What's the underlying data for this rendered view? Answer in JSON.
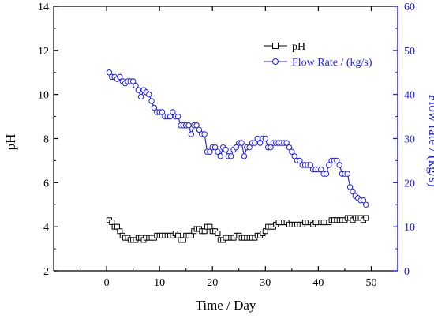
{
  "chart_data": {
    "type": "line",
    "title": "",
    "xlabel": "Time / Day",
    "ylabel_left": "pH",
    "ylabel_right": "Flow rate / (kg/s)",
    "xlim": [
      -10,
      55
    ],
    "ylim_left": [
      2,
      14
    ],
    "ylim_right": [
      0,
      60
    ],
    "x_ticks": [
      0,
      10,
      20,
      30,
      40,
      50
    ],
    "y_left_ticks": [
      2,
      4,
      6,
      8,
      10,
      12,
      14
    ],
    "y_right_ticks": [
      0,
      10,
      20,
      30,
      40,
      50,
      60
    ],
    "grid": false,
    "legend_position": "top-right",
    "series": [
      {
        "name": "pH",
        "axis": "left",
        "color": "#000000",
        "marker": "square",
        "points": [
          [
            0.5,
            4.3
          ],
          [
            1.0,
            4.2
          ],
          [
            1.5,
            4.0
          ],
          [
            2.0,
            4.0
          ],
          [
            2.5,
            3.8
          ],
          [
            3.0,
            3.6
          ],
          [
            3.5,
            3.5
          ],
          [
            4.0,
            3.5
          ],
          [
            4.5,
            3.4
          ],
          [
            5.0,
            3.4
          ],
          [
            5.5,
            3.4
          ],
          [
            6.0,
            3.5
          ],
          [
            6.5,
            3.5
          ],
          [
            7.0,
            3.4
          ],
          [
            7.5,
            3.5
          ],
          [
            8.0,
            3.5
          ],
          [
            8.5,
            3.5
          ],
          [
            9.0,
            3.5
          ],
          [
            9.5,
            3.6
          ],
          [
            10.0,
            3.6
          ],
          [
            10.5,
            3.6
          ],
          [
            11.0,
            3.6
          ],
          [
            11.5,
            3.6
          ],
          [
            12.0,
            3.6
          ],
          [
            12.5,
            3.6
          ],
          [
            13.0,
            3.7
          ],
          [
            13.5,
            3.6
          ],
          [
            14.0,
            3.4
          ],
          [
            14.5,
            3.4
          ],
          [
            15.0,
            3.6
          ],
          [
            15.5,
            3.6
          ],
          [
            16.0,
            3.6
          ],
          [
            16.5,
            3.8
          ],
          [
            17.0,
            3.9
          ],
          [
            17.5,
            3.9
          ],
          [
            18.0,
            3.8
          ],
          [
            18.5,
            3.8
          ],
          [
            19.0,
            4.0
          ],
          [
            19.5,
            4.0
          ],
          [
            20.0,
            3.8
          ],
          [
            20.5,
            3.8
          ],
          [
            21.0,
            3.7
          ],
          [
            21.5,
            3.4
          ],
          [
            22.0,
            3.4
          ],
          [
            22.5,
            3.5
          ],
          [
            23.0,
            3.5
          ],
          [
            23.5,
            3.5
          ],
          [
            24.0,
            3.5
          ],
          [
            24.5,
            3.6
          ],
          [
            25.0,
            3.6
          ],
          [
            25.5,
            3.5
          ],
          [
            26.0,
            3.5
          ],
          [
            26.5,
            3.5
          ],
          [
            27.0,
            3.5
          ],
          [
            27.5,
            3.5
          ],
          [
            28.0,
            3.5
          ],
          [
            28.5,
            3.6
          ],
          [
            29.0,
            3.6
          ],
          [
            29.5,
            3.7
          ],
          [
            30.0,
            3.8
          ],
          [
            30.5,
            4.0
          ],
          [
            31.0,
            4.0
          ],
          [
            31.5,
            4.0
          ],
          [
            32.0,
            4.1
          ],
          [
            32.5,
            4.2
          ],
          [
            33.0,
            4.2
          ],
          [
            33.5,
            4.2
          ],
          [
            34.0,
            4.2
          ],
          [
            34.5,
            4.1
          ],
          [
            35.0,
            4.1
          ],
          [
            35.5,
            4.1
          ],
          [
            36.0,
            4.1
          ],
          [
            36.5,
            4.1
          ],
          [
            37.0,
            4.1
          ],
          [
            37.5,
            4.2
          ],
          [
            38.0,
            4.2
          ],
          [
            38.5,
            4.2
          ],
          [
            39.0,
            4.1
          ],
          [
            39.5,
            4.2
          ],
          [
            40.0,
            4.2
          ],
          [
            40.5,
            4.2
          ],
          [
            41.0,
            4.2
          ],
          [
            41.5,
            4.2
          ],
          [
            42.0,
            4.2
          ],
          [
            42.5,
            4.3
          ],
          [
            43.0,
            4.3
          ],
          [
            43.5,
            4.3
          ],
          [
            44.0,
            4.3
          ],
          [
            44.5,
            4.3
          ],
          [
            45.0,
            4.3
          ],
          [
            45.5,
            4.4
          ],
          [
            46.0,
            4.4
          ],
          [
            46.5,
            4.3
          ],
          [
            47.0,
            4.4
          ],
          [
            47.5,
            4.4
          ],
          [
            48.0,
            4.4
          ],
          [
            48.5,
            4.3
          ],
          [
            49.0,
            4.4
          ]
        ]
      },
      {
        "name": "Flow Rate / (kg/s)",
        "axis": "right",
        "color": "#1a1aff",
        "marker": "circle",
        "points": [
          [
            0.5,
            45.0
          ],
          [
            1.0,
            44.0
          ],
          [
            1.5,
            44.0
          ],
          [
            2.0,
            43.5
          ],
          [
            2.5,
            44.0
          ],
          [
            3.0,
            43.0
          ],
          [
            3.5,
            42.5
          ],
          [
            4.0,
            43.0
          ],
          [
            4.5,
            43.0
          ],
          [
            5.0,
            43.0
          ],
          [
            5.5,
            42.0
          ],
          [
            6.0,
            41.0
          ],
          [
            6.5,
            39.5
          ],
          [
            7.0,
            41.0
          ],
          [
            7.5,
            40.5
          ],
          [
            8.0,
            40.0
          ],
          [
            8.5,
            38.5
          ],
          [
            9.0,
            37.0
          ],
          [
            9.5,
            36.0
          ],
          [
            10.0,
            36.0
          ],
          [
            10.5,
            36.0
          ],
          [
            11.0,
            35.0
          ],
          [
            11.5,
            35.0
          ],
          [
            12.0,
            35.0
          ],
          [
            12.5,
            36.0
          ],
          [
            13.0,
            35.0
          ],
          [
            13.5,
            35.0
          ],
          [
            14.0,
            33.0
          ],
          [
            14.5,
            33.0
          ],
          [
            15.0,
            33.0
          ],
          [
            15.5,
            33.0
          ],
          [
            16.0,
            31.0
          ],
          [
            16.5,
            33.0
          ],
          [
            17.0,
            33.0
          ],
          [
            17.5,
            32.0
          ],
          [
            18.0,
            31.0
          ],
          [
            18.5,
            31.0
          ],
          [
            19.0,
            27.0
          ],
          [
            19.5,
            27.0
          ],
          [
            20.0,
            28.0
          ],
          [
            20.5,
            28.0
          ],
          [
            21.0,
            27.0
          ],
          [
            21.5,
            26.0
          ],
          [
            22.0,
            28.0
          ],
          [
            22.5,
            27.5
          ],
          [
            23.0,
            26.0
          ],
          [
            23.5,
            26.0
          ],
          [
            24.0,
            27.5
          ],
          [
            24.5,
            28.0
          ],
          [
            25.0,
            29.0
          ],
          [
            25.5,
            29.0
          ],
          [
            26.0,
            26.0
          ],
          [
            26.5,
            28.0
          ],
          [
            27.0,
            28.0
          ],
          [
            27.5,
            29.0
          ],
          [
            28.0,
            29.0
          ],
          [
            28.5,
            30.0
          ],
          [
            29.0,
            29.0
          ],
          [
            29.5,
            30.0
          ],
          [
            30.0,
            30.0
          ],
          [
            30.5,
            28.0
          ],
          [
            31.0,
            28.0
          ],
          [
            31.5,
            29.0
          ],
          [
            32.0,
            29.0
          ],
          [
            32.5,
            29.0
          ],
          [
            33.0,
            29.0
          ],
          [
            33.5,
            29.0
          ],
          [
            34.0,
            29.0
          ],
          [
            34.5,
            28.0
          ],
          [
            35.0,
            27.0
          ],
          [
            35.5,
            26.0
          ],
          [
            36.0,
            25.0
          ],
          [
            36.5,
            25.0
          ],
          [
            37.0,
            24.0
          ],
          [
            37.5,
            24.0
          ],
          [
            38.0,
            24.0
          ],
          [
            38.5,
            24.0
          ],
          [
            39.0,
            23.0
          ],
          [
            39.5,
            23.0
          ],
          [
            40.0,
            23.0
          ],
          [
            40.5,
            23.0
          ],
          [
            41.0,
            22.0
          ],
          [
            41.5,
            22.0
          ],
          [
            42.0,
            24.0
          ],
          [
            42.5,
            25.0
          ],
          [
            43.0,
            25.0
          ],
          [
            43.5,
            25.0
          ],
          [
            44.0,
            24.0
          ],
          [
            44.5,
            22.0
          ],
          [
            45.0,
            22.0
          ],
          [
            45.5,
            22.0
          ],
          [
            46.0,
            19.0
          ],
          [
            46.5,
            18.0
          ],
          [
            47.0,
            17.0
          ],
          [
            47.5,
            16.5
          ],
          [
            48.0,
            16.0
          ],
          [
            48.5,
            16.0
          ],
          [
            49.0,
            15.0
          ]
        ]
      }
    ]
  }
}
